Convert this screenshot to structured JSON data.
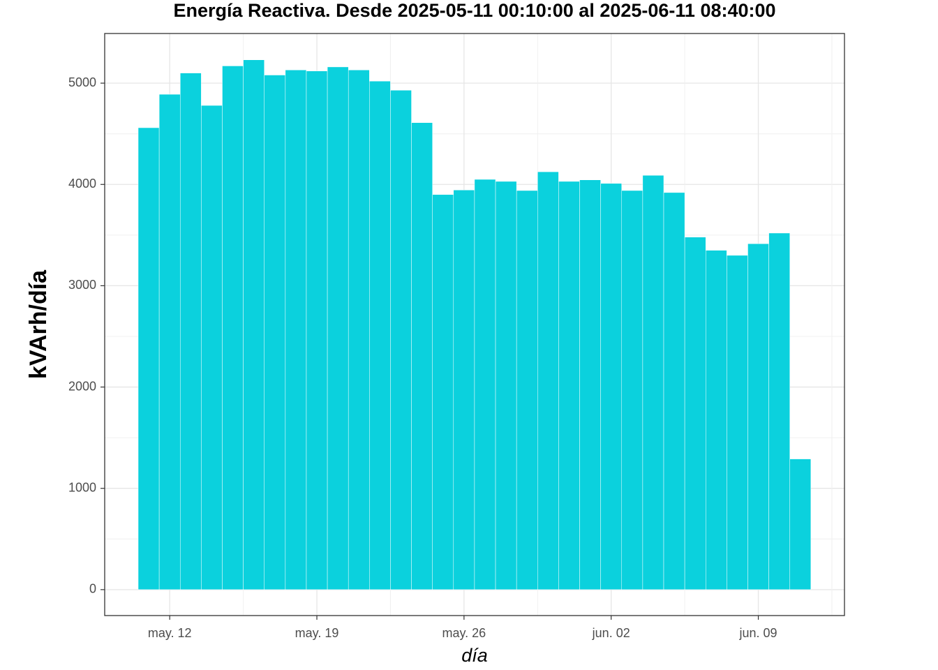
{
  "chart_data": {
    "type": "bar",
    "title": "Energía Reactiva. Desde  2025-05-11 00:10:00  al  2025-06-11 08:40:00",
    "x_label": "día",
    "y_label": "kVArh/día",
    "categories": [
      null,
      "may. 12",
      null,
      null,
      null,
      null,
      null,
      null,
      "may. 19",
      null,
      null,
      null,
      null,
      null,
      null,
      "may. 26",
      null,
      null,
      null,
      null,
      null,
      null,
      "jun. 02",
      null,
      null,
      null,
      null,
      null,
      null,
      "jun. 09",
      null,
      null
    ],
    "values": [
      4560,
      4890,
      5100,
      4780,
      5170,
      5230,
      5080,
      5130,
      5120,
      5160,
      5130,
      5020,
      4930,
      4610,
      3900,
      3945,
      4050,
      4030,
      3940,
      4125,
      4030,
      4045,
      4010,
      3940,
      4090,
      3920,
      3480,
      3350,
      3300,
      3415,
      3520,
      1290
    ],
    "color": "#0bd1dd",
    "ylim": [
      -256,
      5490
    ],
    "yticks": [
      0,
      1000,
      2000,
      3000,
      4000,
      5000
    ],
    "grid": true
  }
}
